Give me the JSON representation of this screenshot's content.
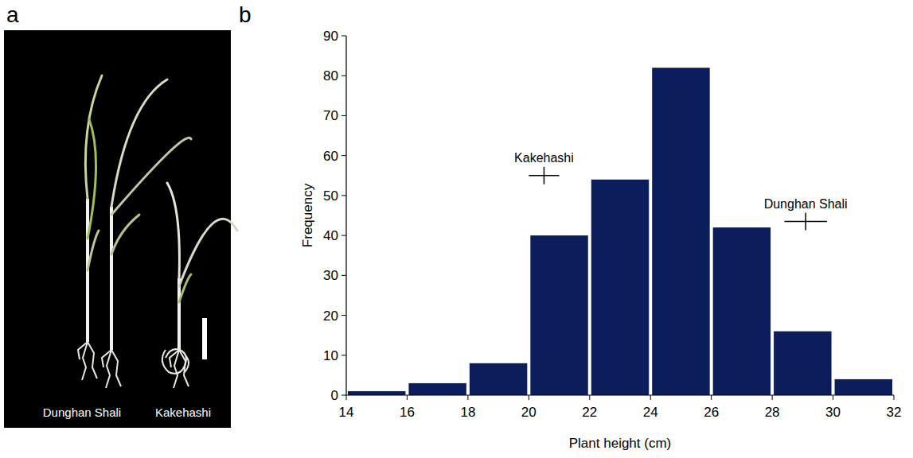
{
  "panel_letters": [
    "a",
    "b"
  ],
  "photo": {
    "labels": [
      "Dunghan Shali",
      "Kakehashi"
    ]
  },
  "chart_data": {
    "type": "histogram",
    "bins": [
      14,
      16,
      18,
      20,
      22,
      24,
      26,
      28,
      30,
      32
    ],
    "values": [
      1,
      3,
      8,
      40,
      54,
      82,
      42,
      16,
      4
    ],
    "color": "#0c1d5e",
    "xlabel": "Plant height (cm)",
    "ylabel": "Frequency",
    "xlim": [
      14,
      32
    ],
    "ylim": [
      0,
      90
    ],
    "xticks": [
      14,
      16,
      18,
      20,
      22,
      24,
      26,
      28,
      30,
      32
    ],
    "yticks": [
      0,
      10,
      20,
      30,
      40,
      50,
      60,
      70,
      80,
      90
    ],
    "grid": false,
    "annotations": [
      {
        "text": "Kakehashi",
        "x": 20.5,
        "y": 55,
        "x_error": 0.5
      },
      {
        "text": "Dunghan Shali",
        "x": 29.1,
        "y": 43.5,
        "x_error": 0.7
      }
    ]
  }
}
